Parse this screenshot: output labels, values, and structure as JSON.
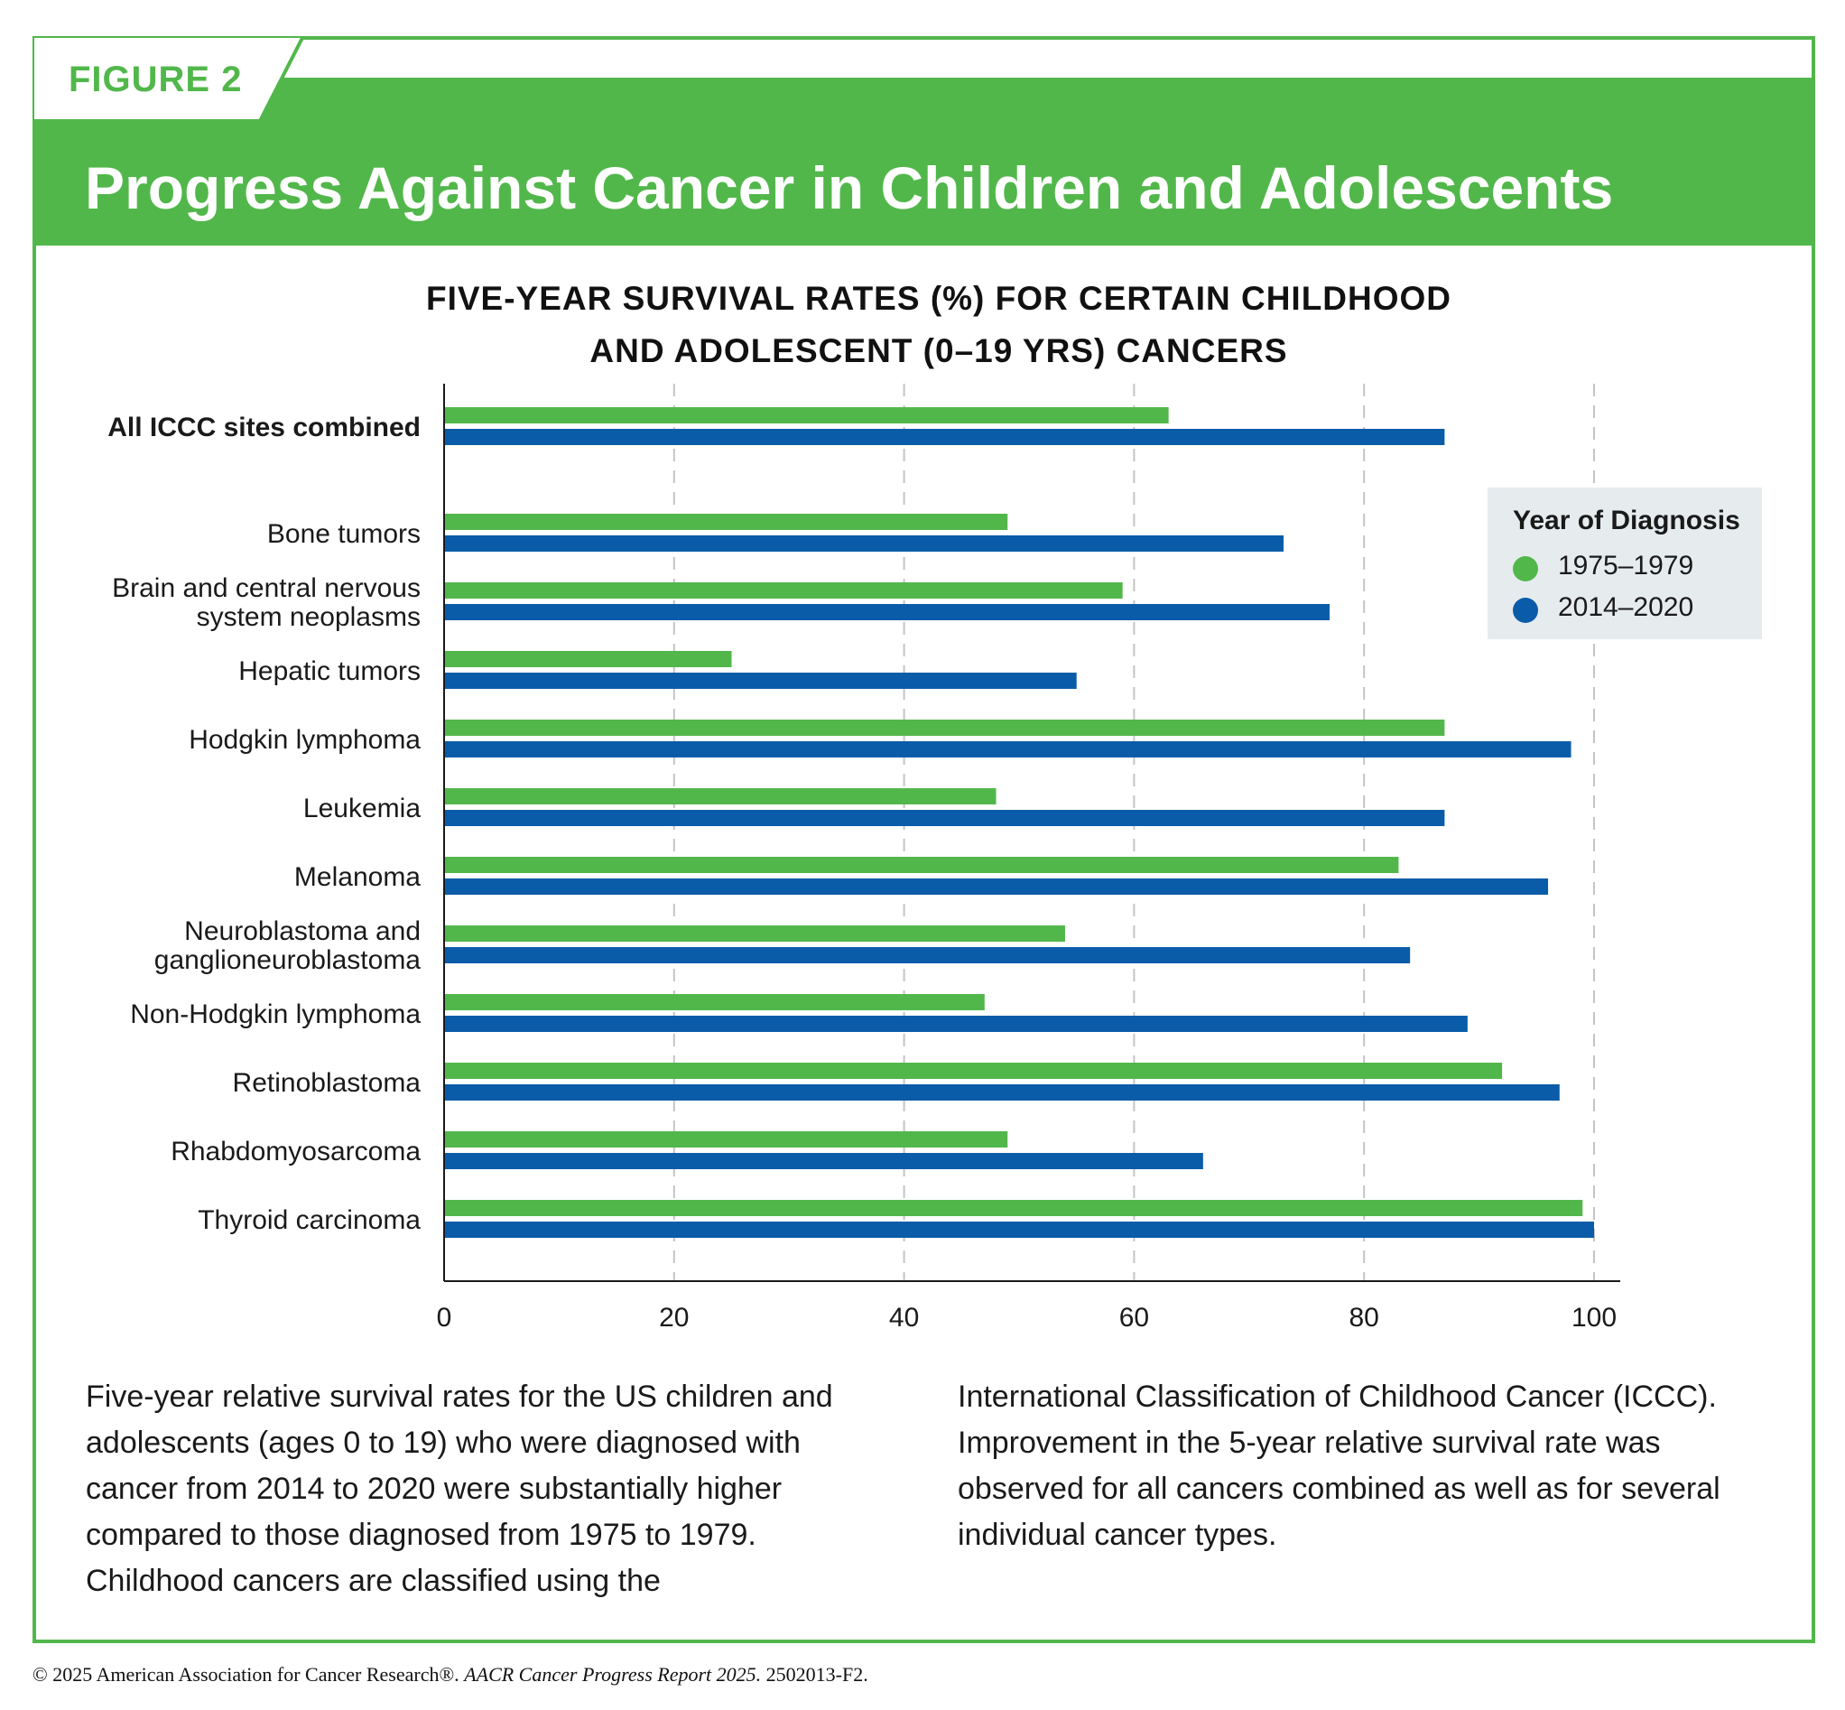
{
  "figure_label": "FIGURE 2",
  "main_title": "Progress Against Cancer in Children and Adolescents",
  "colors": {
    "green": "#52b74b",
    "blue": "#0a5ca8",
    "legend_bg": "#e6ebee"
  },
  "chart_data": {
    "type": "bar",
    "orientation": "horizontal",
    "title_lines": [
      "FIVE-YEAR SURVIVAL RATES (%) FOR CERTAIN CHILDHOOD",
      "AND ADOLESCENT (0–19 YRS) CANCERS"
    ],
    "categories": [
      [
        "All ICCC sites combined"
      ],
      [
        "Bone tumors"
      ],
      [
        "Brain and central nervous",
        "system neoplasms"
      ],
      [
        "Hepatic tumors"
      ],
      [
        "Hodgkin lymphoma"
      ],
      [
        "Leukemia"
      ],
      [
        "Melanoma"
      ],
      [
        "Neuroblastoma and",
        "ganglioneuroblastoma"
      ],
      [
        "Non-Hodgkin lymphoma"
      ],
      [
        "Retinoblastoma"
      ],
      [
        "Rhabdomyosarcoma"
      ],
      [
        "Thyroid carcinoma"
      ]
    ],
    "bold_categories": [
      0
    ],
    "series": [
      {
        "name": "1975–1979",
        "color": "#52b74b",
        "values": [
          63,
          49,
          59,
          25,
          87,
          48,
          83,
          54,
          47,
          92,
          49,
          99
        ]
      },
      {
        "name": "2014–2020",
        "color": "#0a5ca8",
        "values": [
          87,
          73,
          77,
          55,
          98,
          87,
          96,
          84,
          89,
          97,
          66,
          100
        ]
      }
    ],
    "xlim": [
      0,
      100
    ],
    "xticks": [
      0,
      20,
      40,
      60,
      80,
      100
    ],
    "grid": "vertical dashed",
    "legend": {
      "title": "Year of Diagnosis",
      "placement": "top-right"
    }
  },
  "caption_left": "Five-year relative survival rates for the US children and adolescents (ages 0 to 19) who were diagnosed with cancer from 2014 to 2020 were substantially higher compared to those diagnosed from 1975 to 1979. Childhood cancers are classified using the",
  "caption_right": "International Classification of Childhood Cancer (ICCC). Improvement in the 5-year relative survival rate was observed for all cancers combined as well as for several individual cancer types.",
  "copyright": {
    "prefix": "© 2025 American Association for Cancer Research®. ",
    "italic": "AACR Cancer Progress Report 2025.",
    "suffix": " 2502013-F2."
  }
}
